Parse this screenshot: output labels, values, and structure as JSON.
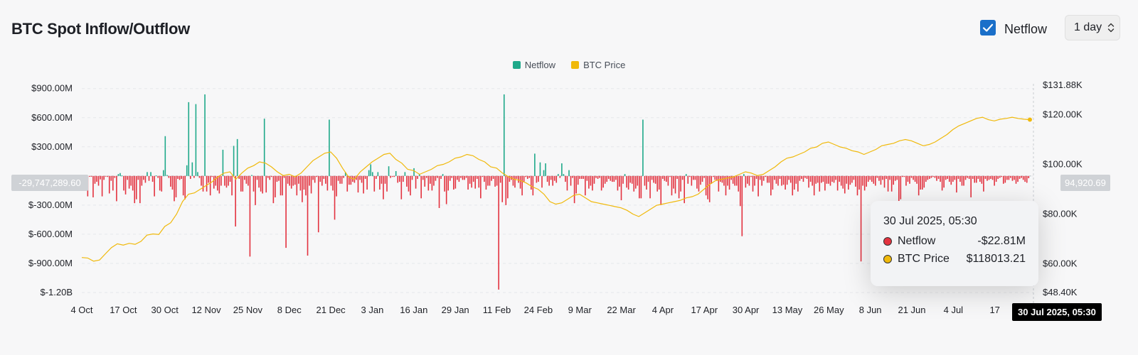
{
  "header": {
    "title": "BTC Spot Inflow/Outflow",
    "netflow_checkbox_label": "Netflow",
    "netflow_checked": true,
    "interval_value": "1 day"
  },
  "colors": {
    "positive": "#1fa98a",
    "negative": "#e3323f",
    "price": "#f0b90b",
    "checkbox": "#1a6fc9"
  },
  "tooltip": {
    "date": "30 Jul 2025, 05:30",
    "rows": [
      {
        "name": "Netflow",
        "value": "-$22.81M"
      },
      {
        "name": "BTC Price",
        "value": "$118013.21"
      }
    ]
  },
  "crosshair": {
    "x_label": "30 Jul 2025, 05:30",
    "left_value": "-29,747,289.60",
    "right_value": "94,920.69"
  },
  "chart_data": {
    "type": "bar",
    "title": "BTC Spot Inflow/Outflow",
    "legend": [
      "Netflow",
      "BTC Price"
    ],
    "legend_position": "top-center",
    "grid": true,
    "x_tick_labels": [
      "4 Oct",
      "17 Oct",
      "30 Oct",
      "12 Nov",
      "25 Nov",
      "8 Dec",
      "21 Dec",
      "3 Jan",
      "16 Jan",
      "29 Jan",
      "11 Feb",
      "24 Feb",
      "9 Mar",
      "22 Mar",
      "4 Apr",
      "17 Apr",
      "30 Apr",
      "13 May",
      "26 May",
      "8 Jun",
      "21 Jun",
      "4 Jul",
      "17"
    ],
    "y_left_tick_labels": [
      "$900.00M",
      "$600.00M",
      "$300.00M",
      "",
      "$-300.00M",
      "$-600.00M",
      "$-900.00M",
      "$-1.20B"
    ],
    "y_left_ticks": [
      900,
      600,
      300,
      0,
      -300,
      -600,
      -900,
      -1200
    ],
    "y_left_range": [
      -1200,
      920
    ],
    "y_right_tick_labels": [
      "$131.88K",
      "$120.00K",
      "$100.00K",
      "$80.00K",
      "$60.00K",
      "$48.40K"
    ],
    "y_right_ticks": [
      131.88,
      120,
      100,
      80,
      60,
      48.4
    ],
    "y_right_range": [
      48.4,
      131.88
    ],
    "series": [
      {
        "name": "Netflow",
        "unit": "$M",
        "values": [
          -30,
          -210,
          -8,
          -8,
          -220,
          -80,
          -60,
          -100,
          -35,
          -210,
          -40,
          -5,
          -10,
          -180,
          -50,
          -150,
          -20,
          -260,
          20,
          30,
          5,
          -150,
          -190,
          -40,
          -130,
          -100,
          -150,
          -280,
          -240,
          -40,
          -280,
          -100,
          -40,
          -70,
          40,
          -50,
          40,
          -60,
          -210,
          5,
          -20,
          -150,
          -160,
          60,
          410,
          10,
          -20,
          -110,
          -140,
          -260,
          -220,
          -30,
          -40,
          -30,
          -200,
          -240,
          110,
          760,
          -30,
          140,
          -20,
          740,
          40,
          -20,
          -100,
          -160,
          840,
          -160,
          -70,
          -200,
          -10,
          -130,
          -100,
          -150,
          -180,
          -100,
          270,
          -100,
          -120,
          -100,
          -60,
          -200,
          310,
          -520,
          380,
          -30,
          -160,
          -160,
          -40,
          -80,
          -100,
          -830,
          10,
          -160,
          -300,
          -40,
          -120,
          -160,
          -180,
          590,
          -170,
          -20,
          -40,
          -10,
          -280,
          -220,
          -60,
          -50,
          -200,
          -200,
          -20,
          -740,
          -80,
          -100,
          -130,
          -100,
          -90,
          -200,
          -80,
          -150,
          -270,
          -140,
          -200,
          -820,
          -100,
          -180,
          -40,
          -70,
          -10,
          -580,
          -60,
          -100,
          -30,
          -80,
          -150,
          580,
          -100,
          -150,
          -450,
          -210,
          -50,
          -80,
          -80,
          -20,
          40,
          -160,
          -90,
          -90,
          -60,
          -70,
          -40,
          -170,
          -40,
          -70,
          -180,
          -30,
          -140,
          60,
          120,
          40,
          -160,
          -30,
          40,
          -140,
          -80,
          -240,
          -80,
          -160,
          100,
          -20,
          -10,
          -10,
          50,
          -70,
          -60,
          -240,
          -60,
          40,
          -110,
          -160,
          -200,
          -40,
          80,
          -130,
          -30,
          20,
          -230,
          -40,
          -110,
          -20,
          -150,
          -80,
          -150,
          -100,
          -50,
          -20,
          -330,
          -30,
          20,
          -160,
          -290,
          -150,
          -50,
          -20,
          -140,
          -130,
          -40,
          -60,
          -20,
          -40,
          -40,
          -20,
          -140,
          -80,
          -120,
          -60,
          -130,
          -30,
          -120,
          -230,
          -10,
          -60,
          -140,
          -100,
          -100,
          -50,
          -30,
          -110,
          -100,
          -1170,
          -70,
          -270,
          840,
          -300,
          -230,
          -60,
          -40,
          -100,
          -120,
          -30,
          -70,
          -130,
          -200,
          -60,
          -10,
          -30,
          -20,
          -140,
          -200,
          230,
          -70,
          -60,
          140,
          -120,
          60,
          130,
          -60,
          -100,
          -40,
          -100,
          -50,
          -70,
          20,
          -20,
          130,
          20,
          -60,
          -150,
          60,
          -100,
          -20,
          -280,
          -180,
          -90,
          -30,
          -30,
          -30,
          -200,
          -50,
          -130,
          -100,
          -150,
          -80,
          -20,
          -30,
          -20,
          -150,
          -120,
          -80,
          -60,
          -30,
          -50,
          -60,
          -60,
          -40,
          -150,
          -110,
          -250,
          -80,
          20,
          -120,
          -140,
          -70,
          -80,
          -160,
          -130,
          -100,
          -230,
          -230,
          580,
          -100,
          -140,
          -60,
          -230,
          -40,
          -70,
          -80,
          -160,
          -140,
          -300,
          -30,
          -50,
          -60,
          -100,
          -10,
          -200,
          -130,
          -180,
          -30,
          -230,
          -160,
          -40,
          -280,
          20,
          -80,
          -10,
          -100,
          -40,
          -40,
          -130,
          -160,
          -90,
          -60,
          -20,
          -200,
          -240,
          -270,
          -80,
          -10,
          -40,
          -50,
          -160,
          -60,
          -70,
          -100,
          -200,
          -100,
          -140,
          -40,
          -80,
          -100,
          -100,
          -160,
          -310,
          -620,
          20,
          -120,
          -80,
          -100,
          -10,
          -160,
          -100,
          -30,
          -210,
          -40,
          -100,
          -50,
          -10,
          -70,
          -70,
          -200,
          -140,
          -40,
          -80,
          -100,
          -30,
          -100,
          -90,
          -140,
          -90,
          -40,
          -70,
          -200,
          -140,
          -80,
          -160,
          -50,
          -30,
          -60,
          -20,
          -30,
          -120,
          -60,
          -100,
          -200,
          -80,
          -70,
          -160,
          -70,
          -60,
          -150,
          -80,
          -80,
          -100,
          -60,
          -70,
          -40,
          -150,
          -60,
          -100,
          -130,
          -180,
          -80,
          -140,
          -90,
          -70,
          -40,
          -110,
          -200,
          -140,
          -880,
          -100,
          -150,
          -110,
          -60,
          -40,
          -60,
          -80,
          -100,
          -20,
          -50,
          -90,
          -40,
          -120,
          -30,
          -160,
          -40,
          -160,
          -90,
          -50,
          -40,
          -300,
          -240,
          -10,
          -10,
          -100,
          -60,
          -80,
          -20,
          -40,
          -60,
          -80,
          -200,
          -140,
          -140,
          -120,
          -60,
          -40,
          -30,
          -20,
          -10,
          -20,
          -50,
          -30,
          -60,
          -150,
          -120,
          -40,
          -30,
          -60,
          -90,
          -60,
          -40,
          -170,
          -30,
          -60,
          -100,
          -100,
          -40,
          -20,
          -30,
          -220,
          -30,
          -70,
          -70,
          -30,
          -60,
          -80,
          -160,
          -30,
          -50,
          -40,
          -30,
          -40,
          -100,
          -60,
          -30,
          -20,
          -10,
          -80,
          -70,
          -40,
          -40,
          -20,
          -50,
          -40,
          -80,
          -60,
          -30,
          -20,
          -40,
          -60,
          -70,
          -23
        ]
      },
      {
        "name": "BTC Price",
        "unit": "$K",
        "values": [
          62.5,
          62.3,
          61.0,
          61.5,
          64.0,
          66.5,
          68.0,
          67.5,
          68.2,
          67.8,
          69.0,
          71.5,
          72.0,
          71.8,
          75.0,
          76.5,
          80.0,
          85.0,
          88.0,
          88.5,
          90.0,
          91.5,
          93.0,
          95.0,
          96.5,
          97.0,
          94.0,
          96.5,
          98.5,
          99.5,
          101.0,
          100.5,
          99.0,
          97.0,
          95.5,
          96.0,
          95.0,
          96.5,
          99.0,
          101.5,
          103.0,
          104.5,
          105.0,
          102.5,
          98.5,
          95.0,
          94.0,
          97.0,
          99.0,
          101.0,
          102.5,
          104.0,
          104.5,
          102.0,
          100.5,
          98.0,
          97.5,
          96.0,
          97.0,
          98.0,
          99.5,
          100.0,
          101.0,
          102.5,
          103.0,
          104.0,
          103.5,
          102.0,
          101.0,
          99.0,
          98.5,
          96.5,
          95.0,
          94.0,
          93.5,
          92.5,
          91.0,
          90.0,
          88.0,
          85.0,
          84.0,
          84.5,
          86.0,
          87.5,
          88.0,
          86.5,
          85.0,
          84.5,
          84.0,
          83.5,
          83.0,
          82.5,
          81.5,
          80.0,
          79.0,
          80.5,
          82.0,
          83.5,
          84.0,
          84.5,
          85.0,
          85.5,
          86.5,
          87.0,
          88.0,
          90.0,
          92.0,
          93.5,
          94.0,
          94.5,
          95.0,
          96.0,
          97.0,
          96.5,
          95.5,
          96.0,
          97.5,
          99.0,
          101.0,
          102.5,
          103.0,
          104.0,
          105.0,
          106.5,
          107.0,
          108.5,
          109.0,
          108.0,
          107.0,
          106.5,
          105.5,
          105.0,
          104.0,
          105.0,
          106.0,
          107.5,
          108.0,
          108.5,
          109.5,
          110.0,
          109.5,
          108.5,
          107.5,
          108.0,
          109.0,
          110.5,
          112.0,
          114.0,
          115.5,
          116.5,
          117.5,
          118.5,
          119.0,
          118.0,
          117.5,
          118.2,
          118.5,
          119.0,
          118.5,
          118.2,
          118.0
        ]
      }
    ]
  }
}
